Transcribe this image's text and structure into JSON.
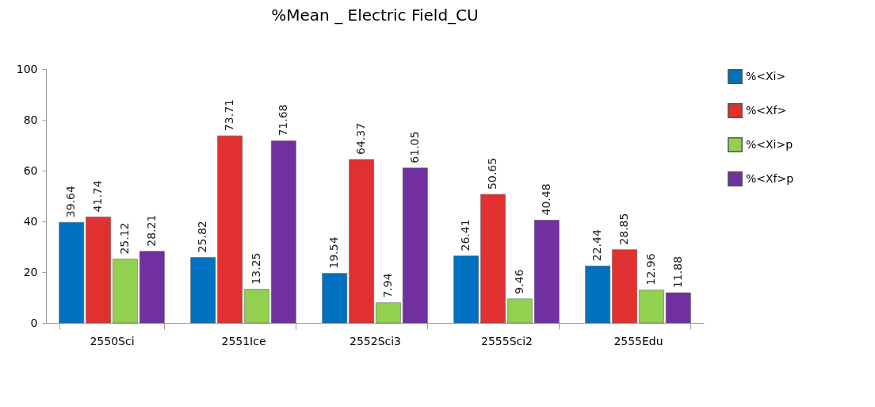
{
  "chart_data": {
    "type": "bar",
    "title": "%Mean _ Electric Field_CU",
    "categories": [
      "2550Sci",
      "2551Ice",
      "2552Sci3",
      "2555Sci2",
      "2555Edu"
    ],
    "series": [
      {
        "name": "%<Xi>",
        "color": "#0070c0",
        "values": [
          39.64,
          25.82,
          19.54,
          26.41,
          22.44
        ]
      },
      {
        "name": "%<Xf>",
        "color": "#e03030",
        "values": [
          41.74,
          73.71,
          64.37,
          50.65,
          28.85
        ]
      },
      {
        "name": "%<Xi>p",
        "color": "#92d050",
        "values": [
          25.12,
          13.25,
          7.94,
          9.46,
          12.96
        ]
      },
      {
        "name": "%<Xf>p",
        "color": "#7030a0",
        "values": [
          28.21,
          71.68,
          61.05,
          40.48,
          11.88
        ]
      }
    ],
    "ylim": [
      0,
      100
    ],
    "yticks": [
      0,
      20,
      40,
      60,
      80,
      100
    ],
    "data_labels": true,
    "legend": "right"
  }
}
